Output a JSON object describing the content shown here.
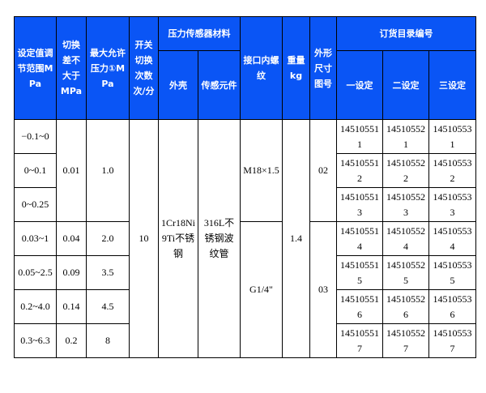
{
  "header": {
    "range": "设定值调节范围MPa",
    "diff": "切换差不大于MPa",
    "maxp": "最大允许压力①MPa",
    "cycles": "开关切换次数次/分",
    "material": "压力传感器材料",
    "shell": "外壳",
    "element": "传感元件",
    "thread": "接口内螺纹",
    "weight": "重量kg",
    "dim": "外形尺寸图号",
    "order": "订货目录编号",
    "s1": "一设定",
    "s2": "二设定",
    "s3": "三设定"
  },
  "rows": [
    {
      "range": "−0.1~0",
      "c1": "145105511",
      "c2": "145105521",
      "c3": "145105531"
    },
    {
      "range": "0~0.1",
      "c1": "145105512",
      "c2": "145105522",
      "c3": "145105532"
    },
    {
      "range": "0~0.25",
      "c1": "145105513",
      "c2": "145105523",
      "c3": "145105533"
    },
    {
      "range": "0.03~1",
      "diff": "0.04",
      "maxp": "2.0",
      "c1": "145105514",
      "c2": "145105524",
      "c3": "145105534"
    },
    {
      "range": "0.05~2.5",
      "diff": "0.09",
      "maxp": "3.5",
      "c1": "145105515",
      "c2": "145105525",
      "c3": "145105535"
    },
    {
      "range": "0.2~4.0",
      "diff": "0.14",
      "maxp": "4.5",
      "c1": "145105516",
      "c2": "145105526",
      "c3": "145105536"
    },
    {
      "range": "0.3~6.3",
      "diff": "0.2",
      "maxp": "8",
      "c1": "145105517",
      "c2": "145105527",
      "c3": "145105537"
    }
  ],
  "group1": {
    "diff": "0.01",
    "maxp": "1.0",
    "thread": "M18×1.5",
    "dim": "02"
  },
  "group2": {
    "thread": "G1/4\"",
    "dim": "03"
  },
  "shared": {
    "cycles": "10",
    "shell": "1Cr18Ni9Ti不锈钢",
    "element": "316L不锈钢波纹管",
    "weight": "1.4"
  },
  "colors": {
    "header_bg": "#0A55F5",
    "header_text": "#FFFFFF"
  }
}
